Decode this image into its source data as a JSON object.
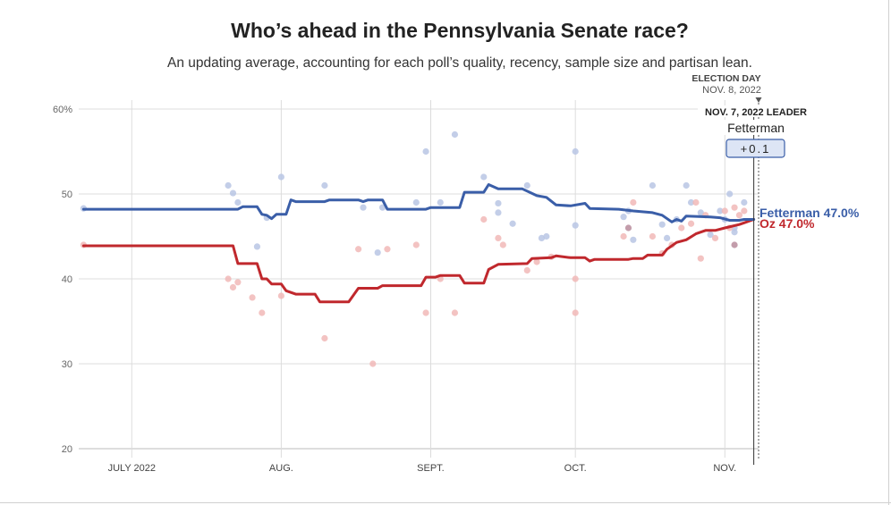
{
  "header": {
    "title": "Who’s ahead in the Pennsylvania Senate race?",
    "subtitle": "An updating average, accounting for each poll’s quality, recency, sample size and partisan lean."
  },
  "election_day": {
    "label": "ELECTION DAY",
    "date": "NOV. 8, 2022"
  },
  "leader_box": {
    "date_label": "NOV. 7, 2022 LEADER",
    "name": "Fetterman",
    "margin": "+0.1"
  },
  "end_labels": {
    "fetterman": "Fetterman 47.0%",
    "oz": "Oz 47.0%"
  },
  "colors": {
    "democrat": "#3a5ea8",
    "republican": "#c0282d",
    "democrat_poll": "#b8c5e4",
    "republican_poll": "#f1b9b7",
    "both_poll": "#b88c9c",
    "grid": "#dcdcdc",
    "leader_box_fill": "#dde5f5"
  },
  "chart_data": {
    "type": "line",
    "y_tick_labels": [
      "60%",
      "50",
      "40",
      "30",
      "20"
    ],
    "y_ticks": [
      60,
      50,
      40,
      30,
      20
    ],
    "ylim": [
      20,
      60
    ],
    "xlim": [
      "2022-06-20",
      "2022-11-08"
    ],
    "x_ticks": [
      {
        "date": "2022-07-01",
        "label": "JULY 2022"
      },
      {
        "date": "2022-08-01",
        "label": "AUG."
      },
      {
        "date": "2022-09-01",
        "label": "SEPT."
      },
      {
        "date": "2022-10-01",
        "label": "OCT."
      },
      {
        "date": "2022-11-01",
        "label": "NOV."
      }
    ],
    "grid": true,
    "series": [
      {
        "name": "Fetterman",
        "party": "D",
        "points": [
          [
            "2022-06-21",
            48.2
          ],
          [
            "2022-07-23",
            48.2
          ],
          [
            "2022-07-24",
            48.5
          ],
          [
            "2022-07-27",
            48.5
          ],
          [
            "2022-07-28",
            47.6
          ],
          [
            "2022-07-29",
            47.5
          ],
          [
            "2022-07-30",
            47.1
          ],
          [
            "2022-07-31",
            47.6
          ],
          [
            "2022-08-01",
            47.6
          ],
          [
            "2022-08-02",
            47.6
          ],
          [
            "2022-08-03",
            49.3
          ],
          [
            "2022-08-04",
            49.1
          ],
          [
            "2022-08-10",
            49.1
          ],
          [
            "2022-08-11",
            49.3
          ],
          [
            "2022-08-17",
            49.3
          ],
          [
            "2022-08-18",
            49.1
          ],
          [
            "2022-08-19",
            49.3
          ],
          [
            "2022-08-22",
            49.3
          ],
          [
            "2022-08-23",
            48.2
          ],
          [
            "2022-08-31",
            48.2
          ],
          [
            "2022-09-01",
            48.4
          ],
          [
            "2022-09-07",
            48.4
          ],
          [
            "2022-09-08",
            50.2
          ],
          [
            "2022-09-12",
            50.2
          ],
          [
            "2022-09-13",
            51.1
          ],
          [
            "2022-09-15",
            50.6
          ],
          [
            "2022-09-20",
            50.6
          ],
          [
            "2022-09-23",
            49.8
          ],
          [
            "2022-09-25",
            49.6
          ],
          [
            "2022-09-27",
            48.7
          ],
          [
            "2022-09-30",
            48.6
          ],
          [
            "2022-10-03",
            48.9
          ],
          [
            "2022-10-04",
            48.3
          ],
          [
            "2022-10-10",
            48.2
          ],
          [
            "2022-10-13",
            48.0
          ],
          [
            "2022-10-17",
            47.8
          ],
          [
            "2022-10-19",
            47.5
          ],
          [
            "2022-10-21",
            46.7
          ],
          [
            "2022-10-22",
            47.0
          ],
          [
            "2022-10-23",
            46.8
          ],
          [
            "2022-10-24",
            47.4
          ],
          [
            "2022-10-29",
            47.3
          ],
          [
            "2022-10-31",
            47.2
          ],
          [
            "2022-11-02",
            46.9
          ],
          [
            "2022-11-04",
            46.9
          ],
          [
            "2022-11-05",
            47.0
          ],
          [
            "2022-11-07",
            47.0
          ]
        ]
      },
      {
        "name": "Oz",
        "party": "R",
        "points": [
          [
            "2022-06-21",
            43.9
          ],
          [
            "2022-07-22",
            43.9
          ],
          [
            "2022-07-23",
            41.8
          ],
          [
            "2022-07-27",
            41.8
          ],
          [
            "2022-07-28",
            40.0
          ],
          [
            "2022-07-29",
            40.0
          ],
          [
            "2022-07-30",
            39.4
          ],
          [
            "2022-08-01",
            39.4
          ],
          [
            "2022-08-02",
            38.6
          ],
          [
            "2022-08-04",
            38.2
          ],
          [
            "2022-08-08",
            38.2
          ],
          [
            "2022-08-09",
            37.3
          ],
          [
            "2022-08-15",
            37.3
          ],
          [
            "2022-08-17",
            38.9
          ],
          [
            "2022-08-21",
            38.9
          ],
          [
            "2022-08-22",
            39.2
          ],
          [
            "2022-08-30",
            39.2
          ],
          [
            "2022-08-31",
            40.2
          ],
          [
            "2022-09-02",
            40.2
          ],
          [
            "2022-09-03",
            40.4
          ],
          [
            "2022-09-07",
            40.4
          ],
          [
            "2022-09-08",
            39.5
          ],
          [
            "2022-09-12",
            39.5
          ],
          [
            "2022-09-13",
            41.1
          ],
          [
            "2022-09-15",
            41.7
          ],
          [
            "2022-09-21",
            41.8
          ],
          [
            "2022-09-22",
            42.4
          ],
          [
            "2022-09-26",
            42.5
          ],
          [
            "2022-09-27",
            42.7
          ],
          [
            "2022-09-30",
            42.5
          ],
          [
            "2022-10-03",
            42.5
          ],
          [
            "2022-10-04",
            42.1
          ],
          [
            "2022-10-05",
            42.3
          ],
          [
            "2022-10-12",
            42.3
          ],
          [
            "2022-10-13",
            42.4
          ],
          [
            "2022-10-15",
            42.4
          ],
          [
            "2022-10-16",
            42.8
          ],
          [
            "2022-10-19",
            42.8
          ],
          [
            "2022-10-20",
            43.5
          ],
          [
            "2022-10-22",
            44.3
          ],
          [
            "2022-10-24",
            44.6
          ],
          [
            "2022-10-26",
            45.3
          ],
          [
            "2022-10-28",
            45.7
          ],
          [
            "2022-10-30",
            45.7
          ],
          [
            "2022-11-01",
            46.0
          ],
          [
            "2022-11-04",
            46.4
          ],
          [
            "2022-11-05",
            46.6
          ],
          [
            "2022-11-07",
            47.0
          ]
        ]
      }
    ],
    "polls": [
      {
        "party": "D",
        "points": [
          [
            "2022-06-21",
            48.3
          ],
          [
            "2022-07-21",
            51.0
          ],
          [
            "2022-07-22",
            50.1
          ],
          [
            "2022-07-23",
            49.0
          ],
          [
            "2022-07-27",
            43.8
          ],
          [
            "2022-07-29",
            47.2
          ],
          [
            "2022-08-01",
            52.0
          ],
          [
            "2022-08-10",
            51.0
          ],
          [
            "2022-08-18",
            48.4
          ],
          [
            "2022-08-21",
            43.1
          ],
          [
            "2022-08-22",
            48.4
          ],
          [
            "2022-08-29",
            49.0
          ],
          [
            "2022-08-31",
            55.0
          ],
          [
            "2022-09-03",
            49.0
          ],
          [
            "2022-09-06",
            57.0
          ],
          [
            "2022-09-12",
            52.0
          ],
          [
            "2022-09-15",
            48.9
          ],
          [
            "2022-09-15",
            47.8
          ],
          [
            "2022-09-18",
            46.5
          ],
          [
            "2022-09-21",
            51.0
          ],
          [
            "2022-09-24",
            44.8
          ],
          [
            "2022-09-25",
            45.0
          ],
          [
            "2022-10-01",
            46.3
          ],
          [
            "2022-10-01",
            55.0
          ],
          [
            "2022-10-11",
            47.3
          ],
          [
            "2022-10-12",
            48.0
          ],
          [
            "2022-10-13",
            44.6
          ],
          [
            "2022-10-17",
            51.0
          ],
          [
            "2022-10-19",
            46.4
          ],
          [
            "2022-10-20",
            44.8
          ],
          [
            "2022-10-22",
            47.0
          ],
          [
            "2022-10-24",
            51.0
          ],
          [
            "2022-10-25",
            49.0
          ],
          [
            "2022-10-27",
            47.8
          ],
          [
            "2022-10-29",
            45.2
          ],
          [
            "2022-10-31",
            48.0
          ],
          [
            "2022-11-01",
            47.0
          ],
          [
            "2022-11-02",
            50.0
          ],
          [
            "2022-11-03",
            45.5
          ],
          [
            "2022-11-03",
            46.0
          ],
          [
            "2022-11-05",
            49.0
          ]
        ]
      },
      {
        "party": "R",
        "points": [
          [
            "2022-06-21",
            44.0
          ],
          [
            "2022-07-21",
            40.0
          ],
          [
            "2022-07-22",
            39.0
          ],
          [
            "2022-07-23",
            39.6
          ],
          [
            "2022-07-26",
            37.8
          ],
          [
            "2022-07-28",
            36.0
          ],
          [
            "2022-08-01",
            38.0
          ],
          [
            "2022-08-10",
            33.0
          ],
          [
            "2022-08-17",
            43.5
          ],
          [
            "2022-08-20",
            30.0
          ],
          [
            "2022-08-23",
            43.5
          ],
          [
            "2022-08-29",
            44.0
          ],
          [
            "2022-08-31",
            36.0
          ],
          [
            "2022-09-03",
            40.0
          ],
          [
            "2022-09-06",
            36.0
          ],
          [
            "2022-09-12",
            47.0
          ],
          [
            "2022-09-15",
            44.8
          ],
          [
            "2022-09-16",
            44.0
          ],
          [
            "2022-09-21",
            41.0
          ],
          [
            "2022-09-23",
            42.0
          ],
          [
            "2022-09-26",
            42.6
          ],
          [
            "2022-10-01",
            40.0
          ],
          [
            "2022-10-01",
            36.0
          ],
          [
            "2022-10-11",
            45.0
          ],
          [
            "2022-10-13",
            49.0
          ],
          [
            "2022-10-17",
            45.0
          ],
          [
            "2022-10-19",
            43.0
          ],
          [
            "2022-10-21",
            44.0
          ],
          [
            "2022-10-23",
            46.0
          ],
          [
            "2022-10-25",
            46.5
          ],
          [
            "2022-10-26",
            49.0
          ],
          [
            "2022-10-27",
            42.4
          ],
          [
            "2022-10-28",
            47.5
          ],
          [
            "2022-10-30",
            44.8
          ],
          [
            "2022-11-01",
            48.0
          ],
          [
            "2022-11-02",
            46.0
          ],
          [
            "2022-11-03",
            48.4
          ],
          [
            "2022-11-04",
            47.5
          ],
          [
            "2022-11-05",
            48.0
          ]
        ]
      },
      {
        "party": "both",
        "points": [
          [
            "2022-10-12",
            46.0
          ],
          [
            "2022-11-03",
            44.0
          ]
        ]
      }
    ]
  }
}
